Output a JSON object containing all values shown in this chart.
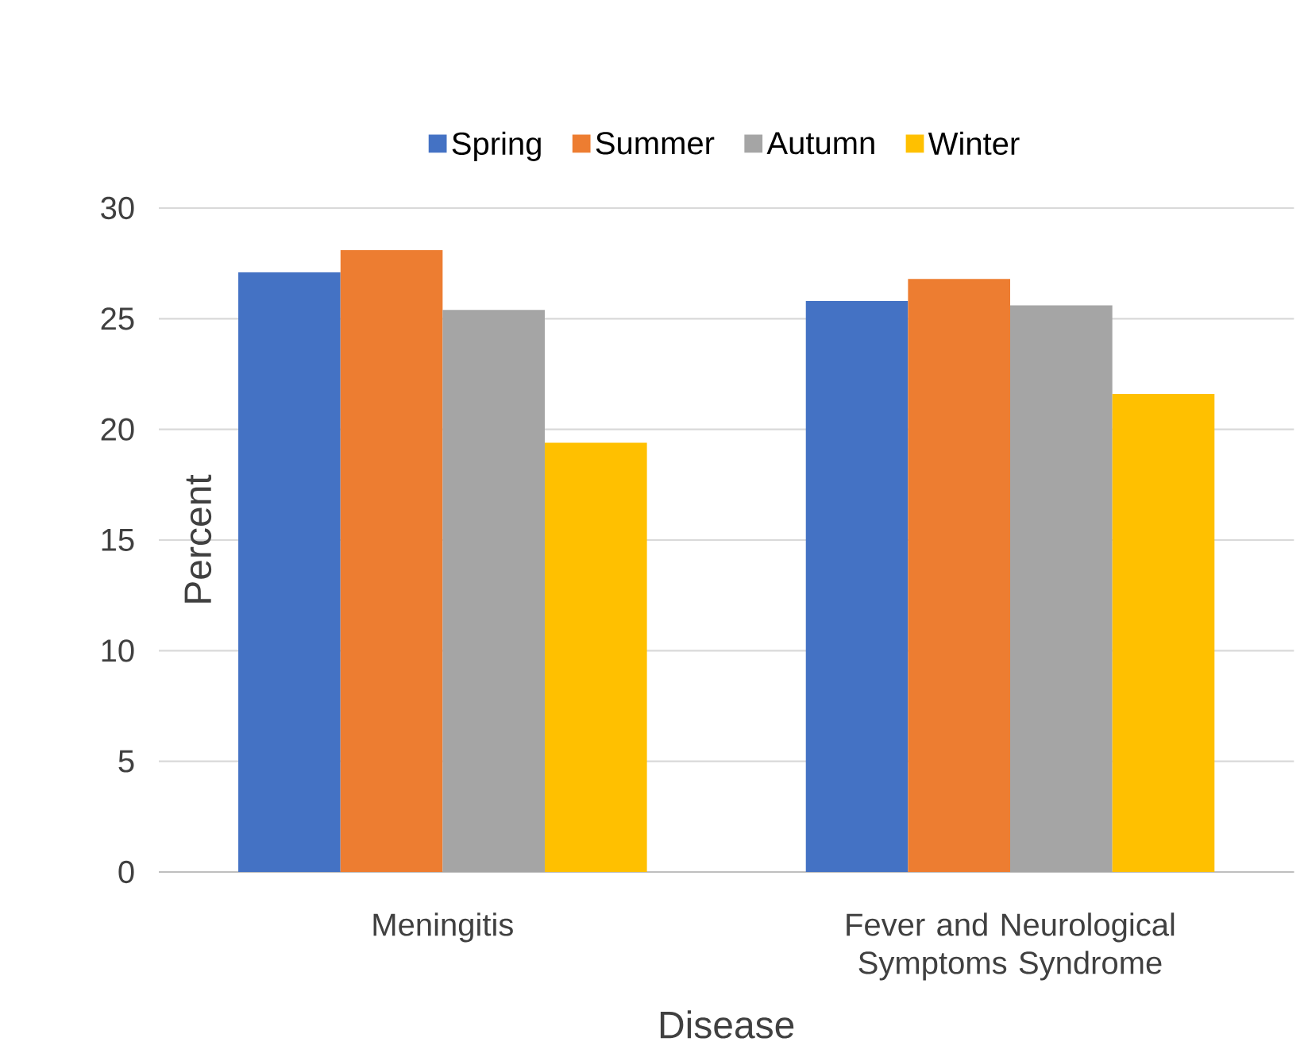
{
  "chart_data": {
    "type": "bar",
    "xlabel": "Disease",
    "ylabel": "Percent",
    "categories": [
      "Meningitis",
      "Fever and Neurological Symptoms Syndrome"
    ],
    "series": [
      {
        "name": "Spring",
        "color": "#4472c4",
        "values": [
          27.1,
          25.8
        ]
      },
      {
        "name": "Summer",
        "color": "#ed7d31",
        "values": [
          28.1,
          26.8
        ]
      },
      {
        "name": "Autumn",
        "color": "#a5a5a5",
        "values": [
          25.4,
          25.6
        ]
      },
      {
        "name": "Winter",
        "color": "#ffc000",
        "values": [
          19.4,
          21.6
        ]
      }
    ],
    "ylim": [
      0,
      30
    ],
    "yticks": [
      0,
      5,
      10,
      15,
      20,
      25,
      30
    ],
    "grid": "y",
    "legend": "top"
  }
}
